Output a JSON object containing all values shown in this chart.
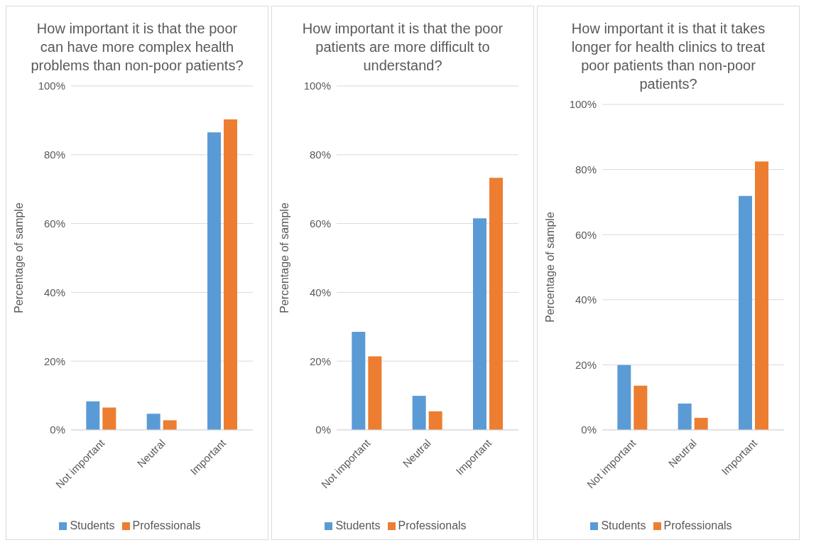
{
  "chart_data": [
    {
      "type": "bar",
      "title": "How important it is that the poor can have more complex health problems than non-poor patients?",
      "ylabel": "Percentage of sample",
      "categories": [
        "Not important",
        "Neutral",
        "Important"
      ],
      "series": [
        {
          "name": "Students",
          "color": "#5b9bd5",
          "values": [
            8.3,
            4.7,
            86.5
          ]
        },
        {
          "name": "Professionals",
          "color": "#ed7d31",
          "values": [
            6.5,
            2.8,
            90.3
          ]
        }
      ],
      "ylim": [
        0,
        100
      ],
      "yticks": [
        {
          "value": 0,
          "label": "0%"
        },
        {
          "value": 20,
          "label": "20%"
        },
        {
          "value": 40,
          "label": "40%"
        },
        {
          "value": 60,
          "label": "60%"
        },
        {
          "value": 80,
          "label": "80%"
        },
        {
          "value": 100,
          "label": "100%"
        }
      ],
      "grid": "y",
      "legend": "bottom"
    },
    {
      "type": "bar",
      "title": "How important it is that the poor patients are more difficult to understand?",
      "ylabel": "Percentage of sample",
      "categories": [
        "Not important",
        "Neutral",
        "Important"
      ],
      "series": [
        {
          "name": "Students",
          "color": "#5b9bd5",
          "values": [
            28.5,
            9.9,
            61.5
          ]
        },
        {
          "name": "Professionals",
          "color": "#ed7d31",
          "values": [
            21.4,
            5.4,
            73.3
          ]
        }
      ],
      "ylim": [
        0,
        100
      ],
      "yticks": [
        {
          "value": 0,
          "label": "0%"
        },
        {
          "value": 20,
          "label": "20%"
        },
        {
          "value": 40,
          "label": "40%"
        },
        {
          "value": 60,
          "label": "60%"
        },
        {
          "value": 80,
          "label": "80%"
        },
        {
          "value": 100,
          "label": "100%"
        }
      ],
      "grid": "y",
      "legend": "bottom"
    },
    {
      "type": "bar",
      "title": "How important it is that it takes longer for health clinics to treat poor patients than non-poor patients?",
      "ylabel": "Percentage of sample",
      "categories": [
        "Not important",
        "Neutral",
        "Important"
      ],
      "series": [
        {
          "name": "Students",
          "color": "#5b9bd5",
          "values": [
            19.9,
            8.1,
            71.9
          ]
        },
        {
          "name": "Professionals",
          "color": "#ed7d31",
          "values": [
            13.6,
            3.7,
            82.5
          ]
        }
      ],
      "ylim": [
        0,
        100
      ],
      "yticks": [
        {
          "value": 0,
          "label": "0%"
        },
        {
          "value": 20,
          "label": "20%"
        },
        {
          "value": 40,
          "label": "40%"
        },
        {
          "value": 60,
          "label": "60%"
        },
        {
          "value": 80,
          "label": "80%"
        },
        {
          "value": 100,
          "label": "100%"
        }
      ],
      "grid": "y",
      "legend": "bottom"
    }
  ]
}
